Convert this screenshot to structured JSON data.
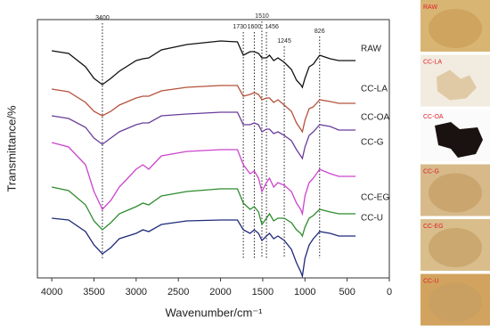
{
  "chart_data": {
    "type": "line",
    "xlabel": "Wavenumber/cm⁻¹",
    "ylabel": "Transmittance/%",
    "x": [
      4000,
      3800,
      3600,
      3500,
      3400,
      3300,
      3200,
      3000,
      2920,
      2850,
      2700,
      2400,
      2000,
      1800,
      1730,
      1650,
      1600,
      1550,
      1510,
      1456,
      1420,
      1370,
      1320,
      1245,
      1160,
      1100,
      1050,
      1030,
      1000,
      950,
      900,
      826,
      700,
      600,
      400
    ],
    "series": [
      {
        "name": "RAW",
        "color": "#111111",
        "values": [
          255,
          252,
          237,
          224,
          217,
          224,
          232,
          244,
          246,
          247,
          256,
          262,
          266,
          265,
          250,
          254,
          254,
          252,
          247,
          247,
          250,
          244,
          247,
          242,
          234,
          222,
          217,
          214,
          224,
          237,
          240,
          250,
          246,
          244,
          244
        ]
      },
      {
        "name": "CC-LA",
        "color": "#b5523b",
        "values": [
          212,
          209,
          197,
          187,
          182,
          187,
          194,
          202,
          204,
          204,
          210,
          214,
          216,
          216,
          204,
          206,
          208,
          206,
          200,
          202,
          202,
          197,
          200,
          194,
          187,
          174,
          167,
          164,
          177,
          190,
          192,
          200,
          198,
          196,
          196
        ]
      },
      {
        "name": "CC-OA",
        "color": "#6a3d9a",
        "values": [
          182,
          179,
          169,
          157,
          150,
          157,
          164,
          172,
          174,
          174,
          182,
          184,
          186,
          186,
          172,
          172,
          174,
          172,
          164,
          167,
          167,
          162,
          164,
          160,
          154,
          144,
          137,
          134,
          147,
          160,
          164,
          172,
          170,
          166,
          166
        ]
      },
      {
        "name": "CC-G",
        "color": "#cc44cc",
        "values": [
          152,
          147,
          127,
          97,
          77,
          87,
          102,
          122,
          127,
          122,
          137,
          142,
          144,
          144,
          127,
          117,
          120,
          112,
          97,
          107,
          112,
          102,
          107,
          104,
          97,
          84,
          77,
          72,
          92,
          107,
          112,
          122,
          117,
          114,
          114
        ]
      },
      {
        "name": "CC-EG",
        "color": "#2e8b2e",
        "values": [
          102,
          98,
          82,
          64,
          54,
          62,
          72,
          80,
          84,
          82,
          92,
          97,
          100,
          100,
          84,
          77,
          80,
          74,
          60,
          67,
          72,
          64,
          67,
          67,
          62,
          54,
          50,
          47,
          57,
          67,
          70,
          77,
          74,
          72,
          72
        ]
      },
      {
        "name": "CC-U",
        "color": "#1f2a7a",
        "values": [
          67,
          65,
          52,
          37,
          27,
          34,
          44,
          50,
          54,
          52,
          60,
          64,
          65,
          65,
          54,
          50,
          54,
          50,
          42,
          47,
          50,
          44,
          47,
          42,
          32,
          17,
          7,
          2,
          22,
          37,
          44,
          52,
          50,
          47,
          47
        ]
      }
    ],
    "xlim": [
      4170,
      0
    ],
    "xticks": [
      4000,
      3500,
      3000,
      2500,
      2000,
      1500,
      1000,
      500,
      0
    ],
    "ylim": [
      0,
      290
    ],
    "peaks": [
      3400,
      1730,
      1600,
      1510,
      1456,
      1245,
      826
    ],
    "photos": [
      "RAW",
      "CC-LA",
      "CC-OA",
      "CC-G",
      "CC-EG",
      "CC-U"
    ]
  }
}
